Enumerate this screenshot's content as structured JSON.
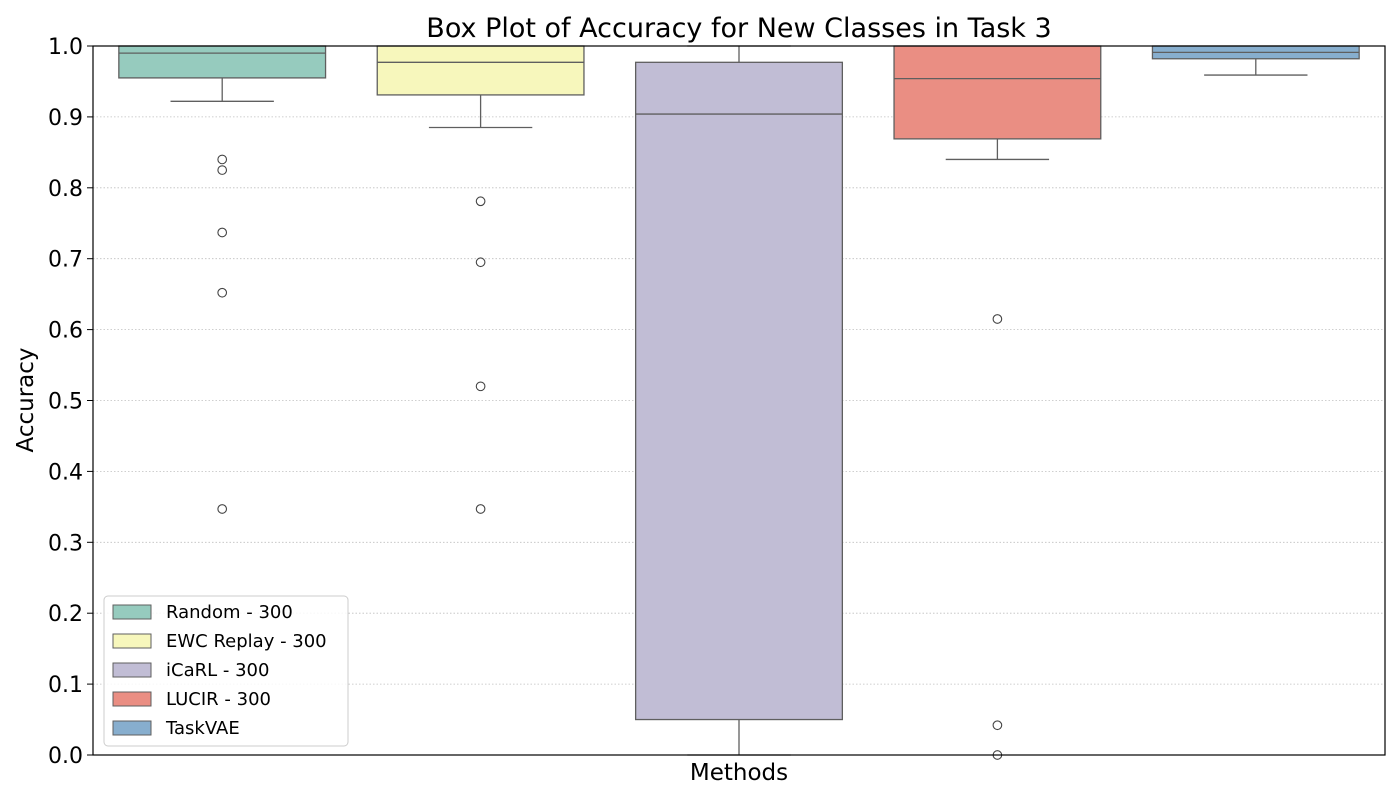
{
  "chart_data": {
    "type": "box",
    "title": "Box Plot of Accuracy for New Classes in Task 3",
    "xlabel": "Methods",
    "ylabel": "Accuracy",
    "ylim": [
      0,
      1
    ],
    "yticks": [
      "0.0",
      "0.1",
      "0.2",
      "0.3",
      "0.4",
      "0.5",
      "0.6",
      "0.7",
      "0.8",
      "0.9",
      "1.0"
    ],
    "grid": "horizontal dotted",
    "legend_position": "lower-left",
    "series": [
      {
        "name": "Random - 300",
        "color": "#96cbbe",
        "q1": 0.955,
        "median": 0.99,
        "q3": 1.0,
        "whisker_low": 0.922,
        "whisker_high": 1.0,
        "outliers": [
          0.84,
          0.825,
          0.737,
          0.652,
          0.347
        ]
      },
      {
        "name": "EWC Replay - 300",
        "color": "#f7f7bc",
        "q1": 0.931,
        "median": 0.977,
        "q3": 1.0,
        "whisker_low": 0.885,
        "whisker_high": 1.0,
        "outliers": [
          0.781,
          0.695,
          0.52,
          0.347
        ]
      },
      {
        "name": "iCaRL - 300",
        "color": "#c1bdd5",
        "q1": 0.05,
        "median": 0.904,
        "q3": 0.977,
        "whisker_low": 0.0,
        "whisker_high": 1.0,
        "outliers": []
      },
      {
        "name": "LUCIR - 300",
        "color": "#ea8e83",
        "q1": 0.869,
        "median": 0.954,
        "q3": 1.0,
        "whisker_low": 0.84,
        "whisker_high": 1.0,
        "outliers": [
          0.615,
          0.042,
          0.0
        ]
      },
      {
        "name": "TaskVAE",
        "color": "#87aece",
        "q1": 0.982,
        "median": 0.991,
        "q3": 1.0,
        "whisker_low": 0.959,
        "whisker_high": 1.0,
        "outliers": []
      }
    ]
  }
}
